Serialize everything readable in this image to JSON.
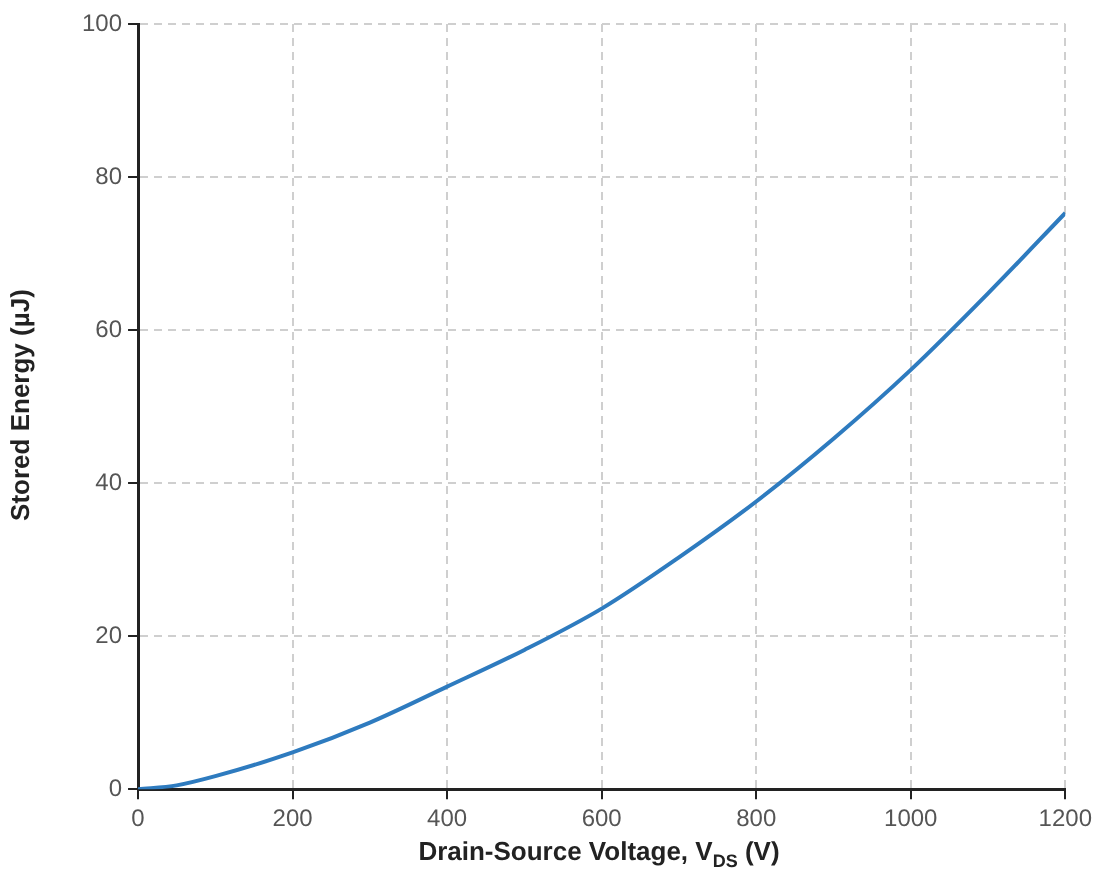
{
  "chart_data": {
    "type": "line",
    "xlabel": "Drain-Source Voltage, V$_{DS}$ (V)",
    "ylabel": "Stored Energy (µJ)",
    "x": [
      0,
      50,
      100,
      200,
      300,
      400,
      500,
      600,
      700,
      800,
      900,
      1000,
      1100,
      1200
    ],
    "series": [
      {
        "color": "#2e7bbf",
        "values": [
          0,
          0.5,
          1.7,
          4.8,
          8.7,
          13.4,
          18.2,
          23.6,
          30.3,
          37.6,
          45.8,
          54.8,
          64.8,
          75.3
        ]
      }
    ],
    "xlim": [
      0,
      1200
    ],
    "xticks": [
      0,
      200,
      400,
      600,
      800,
      1000,
      1200
    ],
    "ylim": [
      0,
      100
    ],
    "yticks": [
      0,
      20,
      40,
      60,
      80,
      100
    ],
    "grid": true,
    "legend": false,
    "marker": "none",
    "line_style": "solid"
  }
}
